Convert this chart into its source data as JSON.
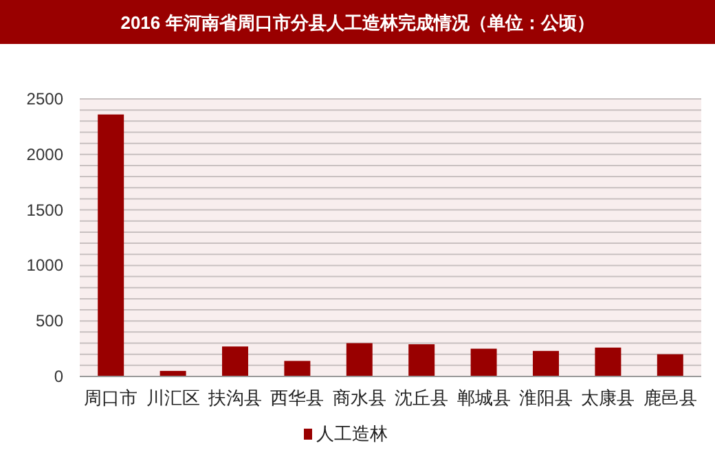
{
  "chart_data": {
    "type": "bar",
    "title": "2016 年河南省周口市分县人工造林完成情况（单位：公顷）",
    "categories": [
      "周口市",
      "川汇区",
      "扶沟县",
      "西华县",
      "商水县",
      "沈丘县",
      "郸城县",
      "淮阳县",
      "太康县",
      "鹿邑县"
    ],
    "series": [
      {
        "name": "人工造林",
        "color": "#990000",
        "values": [
          2360,
          50,
          270,
          140,
          300,
          290,
          250,
          230,
          260,
          200
        ]
      }
    ],
    "ylim": [
      0,
      2500
    ],
    "yticks": [
      0,
      {
        "value": 100,
        "label": null
      },
      {
        "value": 200,
        "label": null
      },
      {
        "value": 300,
        "label": null
      },
      {
        "value": 400,
        "label": null
      },
      500,
      {
        "value": 600,
        "label": null
      },
      {
        "value": 700,
        "label": null
      },
      {
        "value": 800,
        "label": null
      },
      {
        "value": 900,
        "label": null
      },
      1000,
      {
        "value": 1100,
        "label": null
      },
      {
        "value": 1200,
        "label": null
      },
      {
        "value": 1300,
        "label": null
      },
      {
        "value": 1400,
        "label": null
      },
      1500,
      {
        "value": 1600,
        "label": null
      },
      {
        "value": 1700,
        "label": null
      },
      {
        "value": 1800,
        "label": null
      },
      {
        "value": 1900,
        "label": null
      },
      2000,
      {
        "value": 2100,
        "label": null
      },
      {
        "value": 2200,
        "label": null
      },
      {
        "value": 2300,
        "label": null
      },
      {
        "value": 2400,
        "label": null
      },
      2500
    ],
    "grid": "y",
    "legend": "bottom"
  }
}
